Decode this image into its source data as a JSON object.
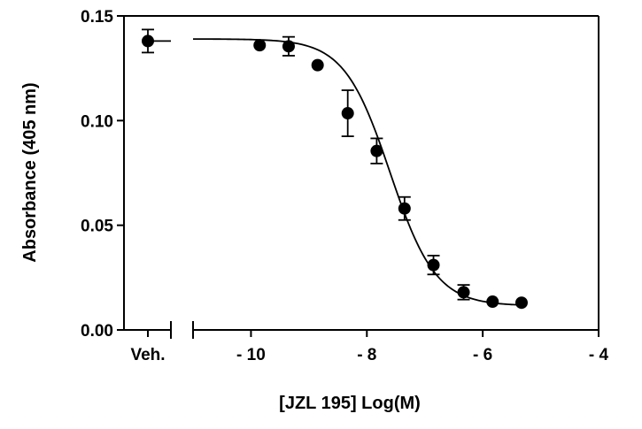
{
  "chart_data": {
    "type": "scatter",
    "title": "",
    "xlabel": "[JZL 195] Log(M)",
    "ylabel": "Absorbance (405 nm)",
    "xlim": [
      -11,
      -4
    ],
    "ylim": [
      0,
      0.15
    ],
    "x_ticks": [
      -10,
      -8,
      -6,
      -4
    ],
    "x_tick_labels": [
      "- 10",
      "- 8",
      "- 6",
      "- 4"
    ],
    "y_ticks": [
      0,
      0.05,
      0.1,
      0.15
    ],
    "y_tick_labels": [
      "0.00",
      "0.05",
      "0.10",
      "0.15"
    ],
    "axis_break": true,
    "grid": false,
    "legend": "none",
    "vehicle": {
      "label": "Veh.",
      "y": 0.138,
      "err": 0.0055
    },
    "points": [
      {
        "x": -9.85,
        "y": 0.136,
        "err": 0.0
      },
      {
        "x": -9.35,
        "y": 0.1355,
        "err": 0.0045
      },
      {
        "x": -8.85,
        "y": 0.1265,
        "err": 0.0
      },
      {
        "x": -8.33,
        "y": 0.1035,
        "err": 0.011
      },
      {
        "x": -7.83,
        "y": 0.0855,
        "err": 0.006
      },
      {
        "x": -7.35,
        "y": 0.058,
        "err": 0.0055
      },
      {
        "x": -6.85,
        "y": 0.031,
        "err": 0.0045
      },
      {
        "x": -6.33,
        "y": 0.018,
        "err": 0.0035
      },
      {
        "x": -5.83,
        "y": 0.0135,
        "err": 0.0
      },
      {
        "x": -5.33,
        "y": 0.013,
        "err": 0.0
      }
    ],
    "fit": {
      "model": "sigmoidal dose-response",
      "top": 0.139,
      "bottom": 0.0115,
      "log_ic50": -7.6,
      "hill": 1.1,
      "x_range": [
        -11,
        -5.33
      ]
    },
    "colors": {
      "marker": "#000000",
      "line": "#000000"
    }
  }
}
